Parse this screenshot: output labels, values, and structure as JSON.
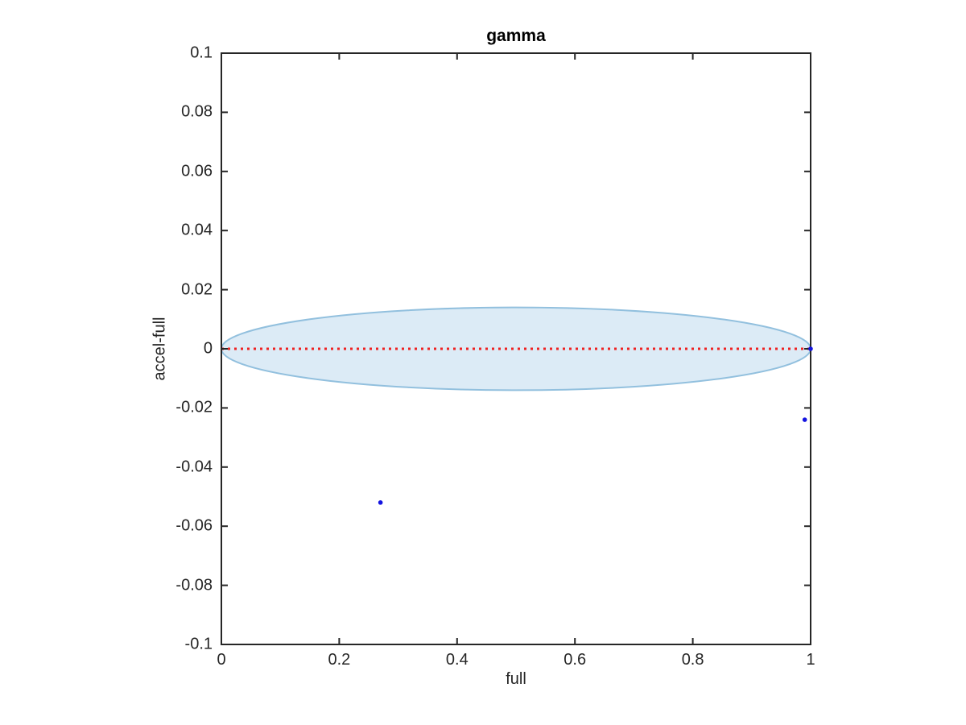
{
  "figure": {
    "background": "#ffffff"
  },
  "chart_data": {
    "type": "scatter",
    "title": "gamma",
    "xlabel": "full",
    "ylabel": "accel-full",
    "xlim": [
      0,
      1
    ],
    "ylim": [
      -0.1,
      0.1
    ],
    "grid": false,
    "box": true,
    "axis_color": "#262626",
    "tick_label_color": "#262626",
    "x_ticks": [
      0,
      0.2,
      0.4,
      0.6,
      0.8,
      1
    ],
    "x_tick_labels": [
      "0",
      "0.2",
      "0.4",
      "0.6",
      "0.8",
      "1"
    ],
    "y_ticks": [
      0.1,
      0.08,
      0.06,
      0.04,
      0.02,
      0,
      -0.02,
      -0.04,
      -0.06,
      -0.08,
      -0.1
    ],
    "y_tick_labels": [
      "0.1",
      "0.08",
      "0.06",
      "0.04",
      "0.02",
      "0",
      "-0.02",
      "-0.04",
      "-0.06",
      "-0.08",
      "-0.1"
    ],
    "ellipse": {
      "cx": 0.5,
      "cy": 0,
      "rx": 0.5,
      "ry": 0.014,
      "fill": "#dcebf6",
      "edge": "#92c0de"
    },
    "zero_line": {
      "y": 0,
      "x0": 0,
      "x1": 1,
      "color": "#ee2222",
      "style": "dotted"
    },
    "scatter_points": [
      {
        "x": 1.0,
        "y": 0.0
      },
      {
        "x": 0.99,
        "y": -0.024
      },
      {
        "x": 0.27,
        "y": -0.052
      }
    ],
    "marker_color": "#1414e0"
  }
}
